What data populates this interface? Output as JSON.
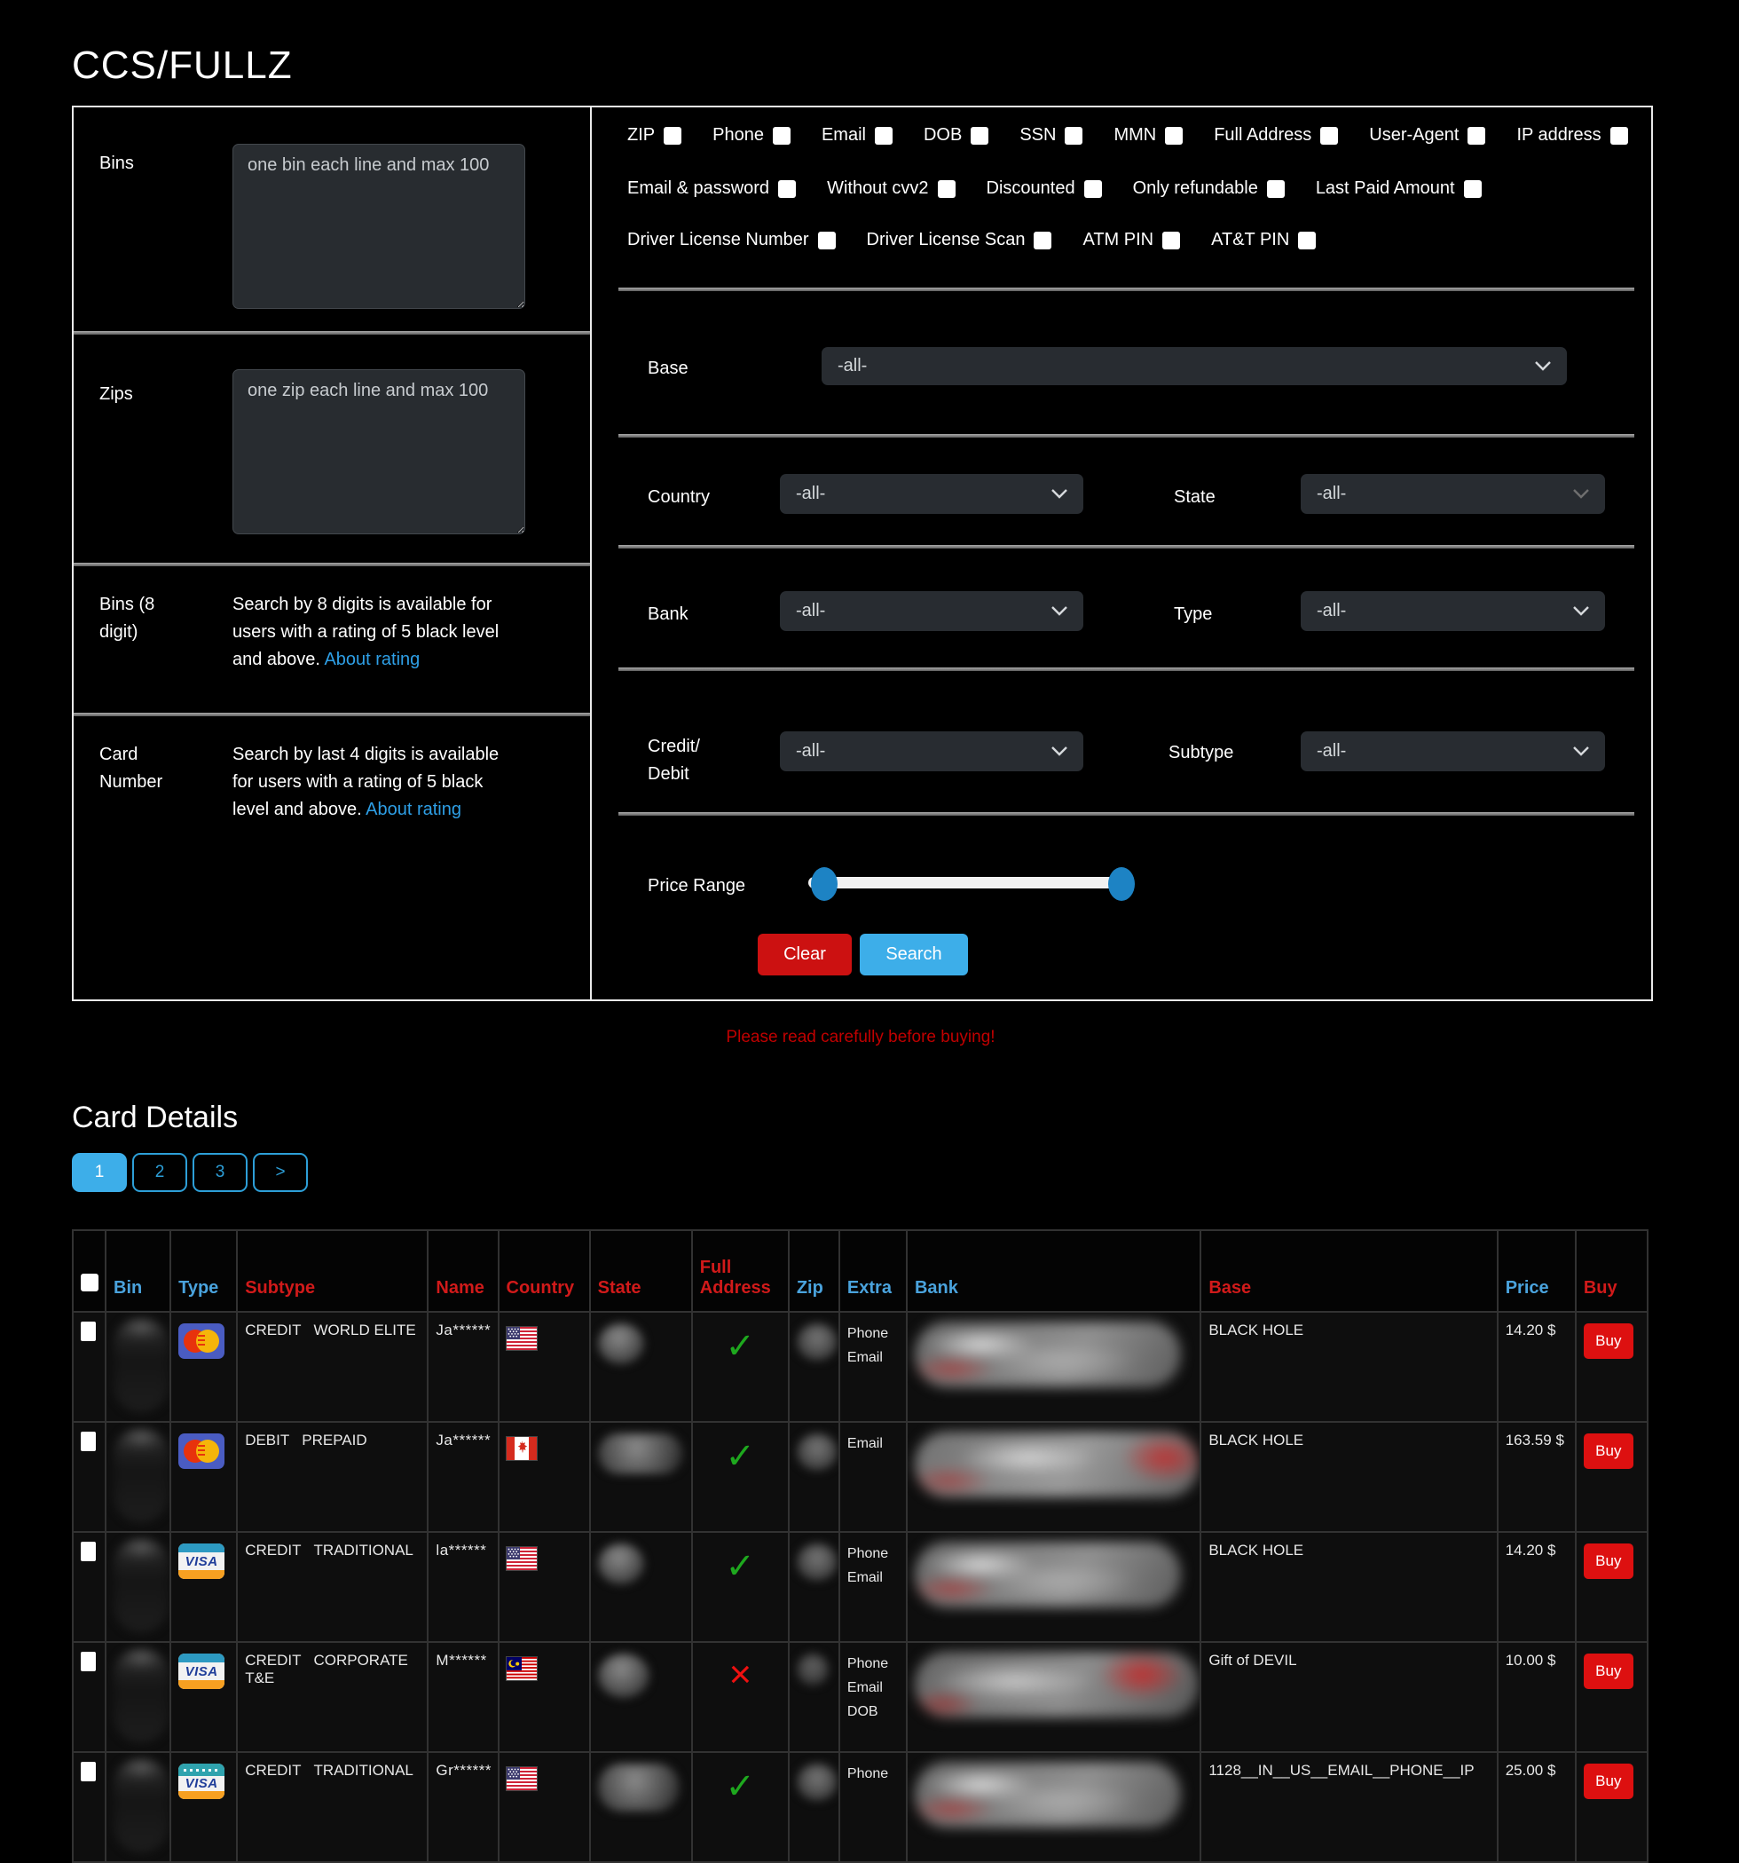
{
  "colors": {
    "accent_blue": "#3daee9",
    "accent_red": "#cc1111",
    "link_blue": "#2e9fe6",
    "header_blue": "#4aa3dd",
    "header_red": "#d11a1a",
    "base_yellow": "#b0a10c",
    "notice_red": "#c00000"
  },
  "title": "CCS/FULLZ",
  "filters": {
    "bins": {
      "label": "Bins",
      "placeholder": "one bin each line and max 100"
    },
    "zips": {
      "label": "Zips",
      "placeholder": "one zip each line and max 100"
    },
    "bins8": {
      "label": "Bins (8 digit)",
      "text": "Search by 8 digits is available for users with a rating of 5 black level and above.",
      "link": "About rating"
    },
    "card_number": {
      "label": "Card Number",
      "text": "Search by last 4 digits is available for users with a rating of 5 black level and above.",
      "link": "About rating"
    },
    "checkbox_rows": [
      [
        "ZIP",
        "Phone",
        "Email",
        "DOB",
        "SSN",
        "MMN",
        "Full Address",
        "User-Agent",
        "IP address"
      ],
      [
        "Email & password",
        "Without cvv2",
        "Discounted",
        "Only refundable",
        "Last Paid Amount"
      ],
      [
        "Driver License Number",
        "Driver License Scan",
        "ATM PIN",
        "AT&T PIN"
      ]
    ],
    "base": {
      "label": "Base",
      "value": "-all-"
    },
    "country": {
      "label": "Country",
      "value": "-all-"
    },
    "state": {
      "label": "State",
      "value": "-all-"
    },
    "bank": {
      "label": "Bank",
      "value": "-all-"
    },
    "type": {
      "label": "Type",
      "value": "-all-"
    },
    "credit_debit": {
      "label": "Credit/ Debit",
      "value": "-all-"
    },
    "subtype": {
      "label": "Subtype",
      "value": "-all-"
    },
    "price_range_label": "Price Range",
    "clear_label": "Clear",
    "search_label": "Search"
  },
  "notice": "Please read carefully before buying!",
  "section_title": "Card Details",
  "pagination": {
    "pages": [
      "1",
      "2",
      "3",
      ">"
    ],
    "active": "1"
  },
  "table": {
    "headers": [
      {
        "label": "",
        "color": "blue",
        "checkbox": true
      },
      {
        "label": "Bin",
        "color": "blue"
      },
      {
        "label": "Type",
        "color": "blue"
      },
      {
        "label": "Subtype",
        "color": "red"
      },
      {
        "label": "Name",
        "color": "red"
      },
      {
        "label": "Country",
        "color": "red"
      },
      {
        "label": "State",
        "color": "red"
      },
      {
        "label": "Full Address",
        "color": "red"
      },
      {
        "label": "Zip",
        "color": "blue"
      },
      {
        "label": "Extra",
        "color": "blue"
      },
      {
        "label": "Bank",
        "color": "blue"
      },
      {
        "label": "Base",
        "color": "red"
      },
      {
        "label": "Price",
        "color": "blue"
      },
      {
        "label": "Buy",
        "color": "red"
      }
    ],
    "rows": [
      {
        "brand": "mastercard",
        "type": "CREDIT",
        "subtype": "WORLD ELITE",
        "name": "Ja******",
        "country": "us",
        "address_ok": true,
        "redacted": [
          "bin",
          "state",
          "zip",
          "bank"
        ],
        "extra": [
          "Phone",
          "Email"
        ],
        "base": "BLACK HOLE",
        "base_style": "white",
        "price": "14.20 $",
        "buy": "Buy"
      },
      {
        "brand": "mastercard",
        "type": "DEBIT",
        "subtype": "PREPAID",
        "name": "Ja******",
        "country": "ca",
        "address_ok": true,
        "redacted": [
          "bin",
          "state",
          "zip",
          "bank"
        ],
        "extra": [
          "Email"
        ],
        "base": "BLACK HOLE",
        "base_style": "white",
        "price": "163.59 $",
        "buy": "Buy"
      },
      {
        "brand": "visa",
        "type": "CREDIT",
        "subtype": "TRADITIONAL",
        "name": "la******",
        "country": "us",
        "address_ok": true,
        "redacted": [
          "bin",
          "state",
          "zip",
          "bank"
        ],
        "extra": [
          "Phone",
          "Email"
        ],
        "base": "BLACK HOLE",
        "base_style": "white",
        "price": "14.20 $",
        "buy": "Buy"
      },
      {
        "brand": "visa",
        "type": "CREDIT",
        "subtype": "CORPORATE T&E",
        "name": "M******",
        "country": "my",
        "address_ok": false,
        "redacted": [
          "bin",
          "state",
          "zip",
          "bank"
        ],
        "extra": [
          "Phone",
          "Email",
          "DOB"
        ],
        "base": "Gift of DEVIL",
        "base_style": "yellow",
        "price": "10.00 $",
        "buy": "Buy"
      },
      {
        "brand": "visa-teal",
        "type": "CREDIT",
        "subtype": "TRADITIONAL",
        "name": "Gr******",
        "country": "us",
        "address_ok": true,
        "redacted": [
          "bin",
          "state",
          "zip",
          "bank"
        ],
        "extra": [
          "Phone"
        ],
        "base": "1128__IN__US__EMAIL__PHONE__IP",
        "base_style": "white",
        "price": "25.00 $",
        "buy": "Buy"
      }
    ]
  }
}
